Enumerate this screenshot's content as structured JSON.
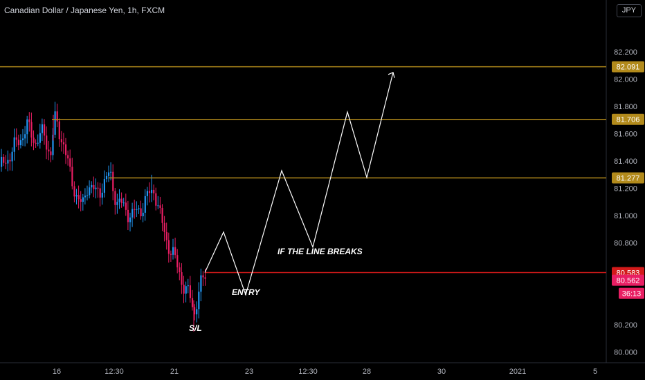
{
  "header": {
    "title": "Canadian Dollar / Japanese Yen, 1h, FXCM",
    "currency": "JPY"
  },
  "chart_data": {
    "type": "candlestick",
    "title": "Canadian Dollar / Japanese Yen, 1h, FXCM",
    "ylim": [
      79.9,
      82.35
    ],
    "y_ticks": [
      "82.200",
      "82.000",
      "81.800",
      "81.600",
      "81.400",
      "81.200",
      "81.000",
      "80.800",
      "80.200",
      "80.000"
    ],
    "x_ticks": [
      "16",
      "12:30",
      "21",
      "23",
      "12:30",
      "28",
      "30",
      "2021",
      "5"
    ],
    "grid": false,
    "colors": {
      "up": "#2196f3",
      "down": "#e91e63",
      "level_line": "#b28a1b",
      "break_line": "#d31a1a",
      "projection": "#ffffff"
    },
    "horizontal_levels": [
      {
        "label": "82.091",
        "value": 82.091,
        "color": "#b28a1b"
      },
      {
        "label": "81.706",
        "value": 81.706,
        "color": "#b28a1b"
      },
      {
        "label": "81.277",
        "value": 81.277,
        "color": "#b28a1b"
      },
      {
        "label": "80.583",
        "value": 80.583,
        "color": "#d31a1a"
      }
    ],
    "current_price": {
      "label": "80.562",
      "value": 80.562,
      "countdown": "36:13"
    },
    "annotations": {
      "break": "IF THE LINE BREAKS",
      "entry": "ENTRY",
      "stop": "S/L"
    },
    "projection_path": [
      {
        "x": 0,
        "y": 80.583
      },
      {
        "x": 1,
        "y": 80.88
      },
      {
        "x": 2,
        "y": 80.42
      },
      {
        "x": 3,
        "y": 81.33
      },
      {
        "x": 4,
        "y": 80.77
      },
      {
        "x": 5,
        "y": 81.76
      },
      {
        "x": 6,
        "y": 81.28
      },
      {
        "x": 7,
        "y": 82.05
      }
    ]
  }
}
